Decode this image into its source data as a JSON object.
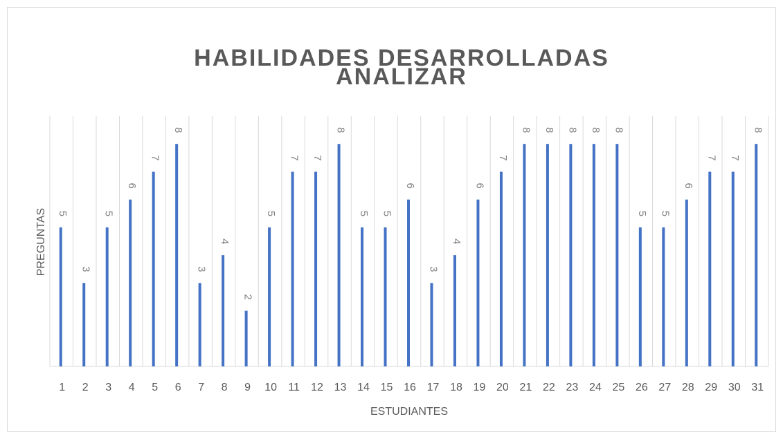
{
  "chart_data": {
    "type": "bar",
    "title": [
      "HABILIDADES DESARROLLADAS",
      "ANALIZAR"
    ],
    "x_label": "ESTUDIANTES",
    "y_label": "PREGUNTAS",
    "categories": [
      "1",
      "2",
      "3",
      "4",
      "5",
      "6",
      "7",
      "8",
      "9",
      "10",
      "11",
      "12",
      "13",
      "14",
      "15",
      "16",
      "17",
      "18",
      "19",
      "20",
      "21",
      "22",
      "23",
      "24",
      "25",
      "26",
      "27",
      "28",
      "29",
      "30",
      "31"
    ],
    "values": [
      5,
      3,
      5,
      6,
      7,
      8,
      3,
      4,
      2,
      5,
      7,
      7,
      8,
      5,
      5,
      6,
      3,
      4,
      6,
      7,
      8,
      8,
      8,
      8,
      8,
      5,
      5,
      6,
      7,
      7,
      8
    ],
    "color": "#4472c4",
    "ylim": [
      0,
      9
    ],
    "grid": true
  }
}
